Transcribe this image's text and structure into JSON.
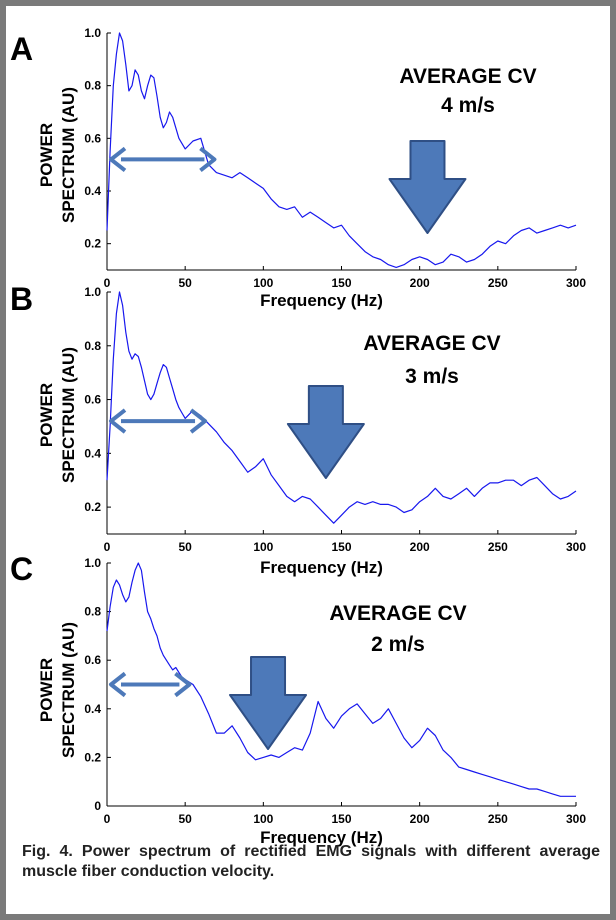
{
  "figure": {
    "caption": "Fig. 4. Power spectrum of rectified EMG signals with different average muscle fiber conduction velocity.",
    "colors": {
      "trace": "#1818ee",
      "arrow": "#4d79b9",
      "arrow_edge": "#2f4f85",
      "border": "#7a7a7a"
    }
  },
  "chart_data": [
    {
      "type": "line",
      "panel_label": "A",
      "title": "",
      "xlabel": "Frequency (Hz)",
      "ylabel": [
        "POWER",
        "SPECTRUM (AU)"
      ],
      "xlim": [
        0,
        300
      ],
      "ylim": [
        0.1,
        1.0
      ],
      "xticks": [
        0,
        50,
        100,
        150,
        200,
        250,
        300
      ],
      "yticks": [
        0.2,
        0.4,
        0.6,
        0.8,
        1.0
      ],
      "xtick_labels": [
        "0",
        "50",
        "100",
        "150",
        "200",
        "250",
        "300"
      ],
      "ytick_labels": [
        "0.2",
        "0.4",
        "0.6",
        "0.8",
        "1.0"
      ],
      "annotation": [
        "AVERAGE CV",
        "4 m/s"
      ],
      "span_arrow_hz": [
        0,
        70
      ],
      "span_arrow_value": 0.52,
      "down_arrow_hz": 205,
      "series": [
        {
          "x": [
            0,
            2,
            4,
            6,
            8,
            10,
            12,
            14,
            16,
            18,
            20,
            22,
            24,
            26,
            28,
            30,
            32,
            34,
            36,
            38,
            40,
            42,
            44,
            46,
            48,
            50,
            55,
            60,
            65,
            70,
            75,
            80,
            85,
            90,
            95,
            100,
            105,
            110,
            115,
            120,
            125,
            130,
            135,
            140,
            145,
            150,
            155,
            160,
            165,
            170,
            175,
            180,
            185,
            190,
            195,
            200,
            205,
            210,
            215,
            220,
            225,
            230,
            235,
            240,
            245,
            250,
            255,
            260,
            265,
            270,
            275,
            280,
            285,
            290,
            295,
            300
          ],
          "y": [
            0.25,
            0.55,
            0.8,
            0.92,
            1.0,
            0.97,
            0.88,
            0.78,
            0.8,
            0.86,
            0.84,
            0.78,
            0.75,
            0.8,
            0.84,
            0.83,
            0.76,
            0.68,
            0.64,
            0.66,
            0.7,
            0.68,
            0.64,
            0.6,
            0.58,
            0.56,
            0.59,
            0.6,
            0.5,
            0.47,
            0.46,
            0.45,
            0.47,
            0.45,
            0.43,
            0.41,
            0.37,
            0.34,
            0.33,
            0.34,
            0.3,
            0.32,
            0.3,
            0.28,
            0.26,
            0.27,
            0.23,
            0.2,
            0.17,
            0.15,
            0.14,
            0.12,
            0.11,
            0.12,
            0.14,
            0.15,
            0.14,
            0.12,
            0.13,
            0.16,
            0.15,
            0.13,
            0.14,
            0.16,
            0.19,
            0.21,
            0.2,
            0.23,
            0.25,
            0.26,
            0.24,
            0.25,
            0.26,
            0.27,
            0.26,
            0.27
          ]
        }
      ]
    },
    {
      "type": "line",
      "panel_label": "B",
      "title": "",
      "xlabel": "Frequency (Hz)",
      "ylabel": [
        "POWER",
        "SPECTRUM (AU)"
      ],
      "xlim": [
        0,
        300
      ],
      "ylim": [
        0.1,
        1.0
      ],
      "xticks": [
        0,
        50,
        100,
        150,
        200,
        250,
        300
      ],
      "yticks": [
        0.2,
        0.4,
        0.6,
        0.8,
        1.0
      ],
      "xtick_labels": [
        "0",
        "50",
        "100",
        "150",
        "200",
        "250",
        "300"
      ],
      "ytick_labels": [
        "0.2",
        "0.4",
        "0.6",
        "0.8",
        "1.0"
      ],
      "annotation": [
        "AVERAGE CV",
        "3 m/s"
      ],
      "span_arrow_hz": [
        0,
        64
      ],
      "span_arrow_value": 0.52,
      "down_arrow_hz": 140,
      "series": [
        {
          "x": [
            0,
            2,
            4,
            6,
            8,
            10,
            12,
            14,
            16,
            18,
            20,
            22,
            24,
            26,
            28,
            30,
            32,
            34,
            36,
            38,
            40,
            42,
            44,
            46,
            48,
            50,
            55,
            60,
            65,
            70,
            75,
            80,
            85,
            90,
            95,
            100,
            105,
            110,
            115,
            120,
            125,
            130,
            135,
            140,
            145,
            150,
            155,
            160,
            165,
            170,
            175,
            180,
            185,
            190,
            195,
            200,
            205,
            210,
            215,
            220,
            225,
            230,
            235,
            240,
            245,
            250,
            255,
            260,
            265,
            270,
            275,
            280,
            285,
            290,
            295,
            300
          ],
          "y": [
            0.3,
            0.5,
            0.75,
            0.92,
            1.0,
            0.95,
            0.85,
            0.78,
            0.75,
            0.77,
            0.76,
            0.72,
            0.67,
            0.62,
            0.6,
            0.62,
            0.66,
            0.7,
            0.73,
            0.72,
            0.68,
            0.64,
            0.6,
            0.57,
            0.55,
            0.53,
            0.56,
            0.54,
            0.51,
            0.48,
            0.44,
            0.41,
            0.37,
            0.33,
            0.35,
            0.38,
            0.32,
            0.28,
            0.24,
            0.22,
            0.24,
            0.23,
            0.2,
            0.17,
            0.14,
            0.17,
            0.2,
            0.22,
            0.21,
            0.22,
            0.21,
            0.21,
            0.2,
            0.18,
            0.19,
            0.22,
            0.24,
            0.27,
            0.24,
            0.23,
            0.25,
            0.27,
            0.24,
            0.27,
            0.29,
            0.29,
            0.3,
            0.3,
            0.28,
            0.3,
            0.31,
            0.28,
            0.25,
            0.23,
            0.24,
            0.26
          ]
        }
      ]
    },
    {
      "type": "line",
      "panel_label": "C",
      "title": "",
      "xlabel": "Frequency (Hz)",
      "ylabel": [
        "POWER",
        "SPECTRUM (AU)"
      ],
      "xlim": [
        0,
        300
      ],
      "ylim": [
        0,
        1.0
      ],
      "xticks": [
        0,
        50,
        100,
        150,
        200,
        250,
        300
      ],
      "yticks": [
        0,
        0.2,
        0.4,
        0.6,
        0.8,
        1.0
      ],
      "xtick_labels": [
        "0",
        "50",
        "100",
        "150",
        "200",
        "250",
        "300"
      ],
      "ytick_labels": [
        "0",
        "0.2",
        "0.4",
        "0.6",
        "0.8",
        "1.0"
      ],
      "annotation": [
        "AVERAGE CV",
        "2 m/s"
      ],
      "span_arrow_hz": [
        0,
        54
      ],
      "span_arrow_value": 0.5,
      "down_arrow_hz": 103,
      "series": [
        {
          "x": [
            0,
            2,
            4,
            6,
            8,
            10,
            12,
            14,
            16,
            18,
            20,
            22,
            24,
            26,
            28,
            30,
            32,
            34,
            36,
            38,
            40,
            42,
            44,
            46,
            48,
            50,
            55,
            60,
            65,
            70,
            75,
            80,
            85,
            90,
            95,
            100,
            105,
            110,
            115,
            120,
            125,
            130,
            135,
            140,
            145,
            150,
            155,
            160,
            165,
            170,
            175,
            180,
            185,
            190,
            195,
            200,
            205,
            210,
            215,
            220,
            225,
            230,
            235,
            240,
            245,
            250,
            255,
            260,
            265,
            270,
            275,
            280,
            285,
            290,
            295,
            300
          ],
          "y": [
            0.72,
            0.82,
            0.9,
            0.93,
            0.91,
            0.87,
            0.84,
            0.86,
            0.92,
            0.97,
            1.0,
            0.97,
            0.88,
            0.8,
            0.77,
            0.73,
            0.7,
            0.65,
            0.62,
            0.6,
            0.58,
            0.56,
            0.57,
            0.55,
            0.53,
            0.52,
            0.5,
            0.45,
            0.38,
            0.3,
            0.3,
            0.33,
            0.28,
            0.22,
            0.19,
            0.2,
            0.21,
            0.2,
            0.22,
            0.24,
            0.23,
            0.3,
            0.43,
            0.36,
            0.32,
            0.37,
            0.4,
            0.42,
            0.38,
            0.34,
            0.36,
            0.4,
            0.34,
            0.28,
            0.24,
            0.27,
            0.32,
            0.29,
            0.23,
            0.2,
            0.16,
            0.15,
            0.14,
            0.13,
            0.12,
            0.11,
            0.1,
            0.09,
            0.08,
            0.07,
            0.07,
            0.06,
            0.05,
            0.04,
            0.04,
            0.04
          ]
        }
      ]
    }
  ]
}
